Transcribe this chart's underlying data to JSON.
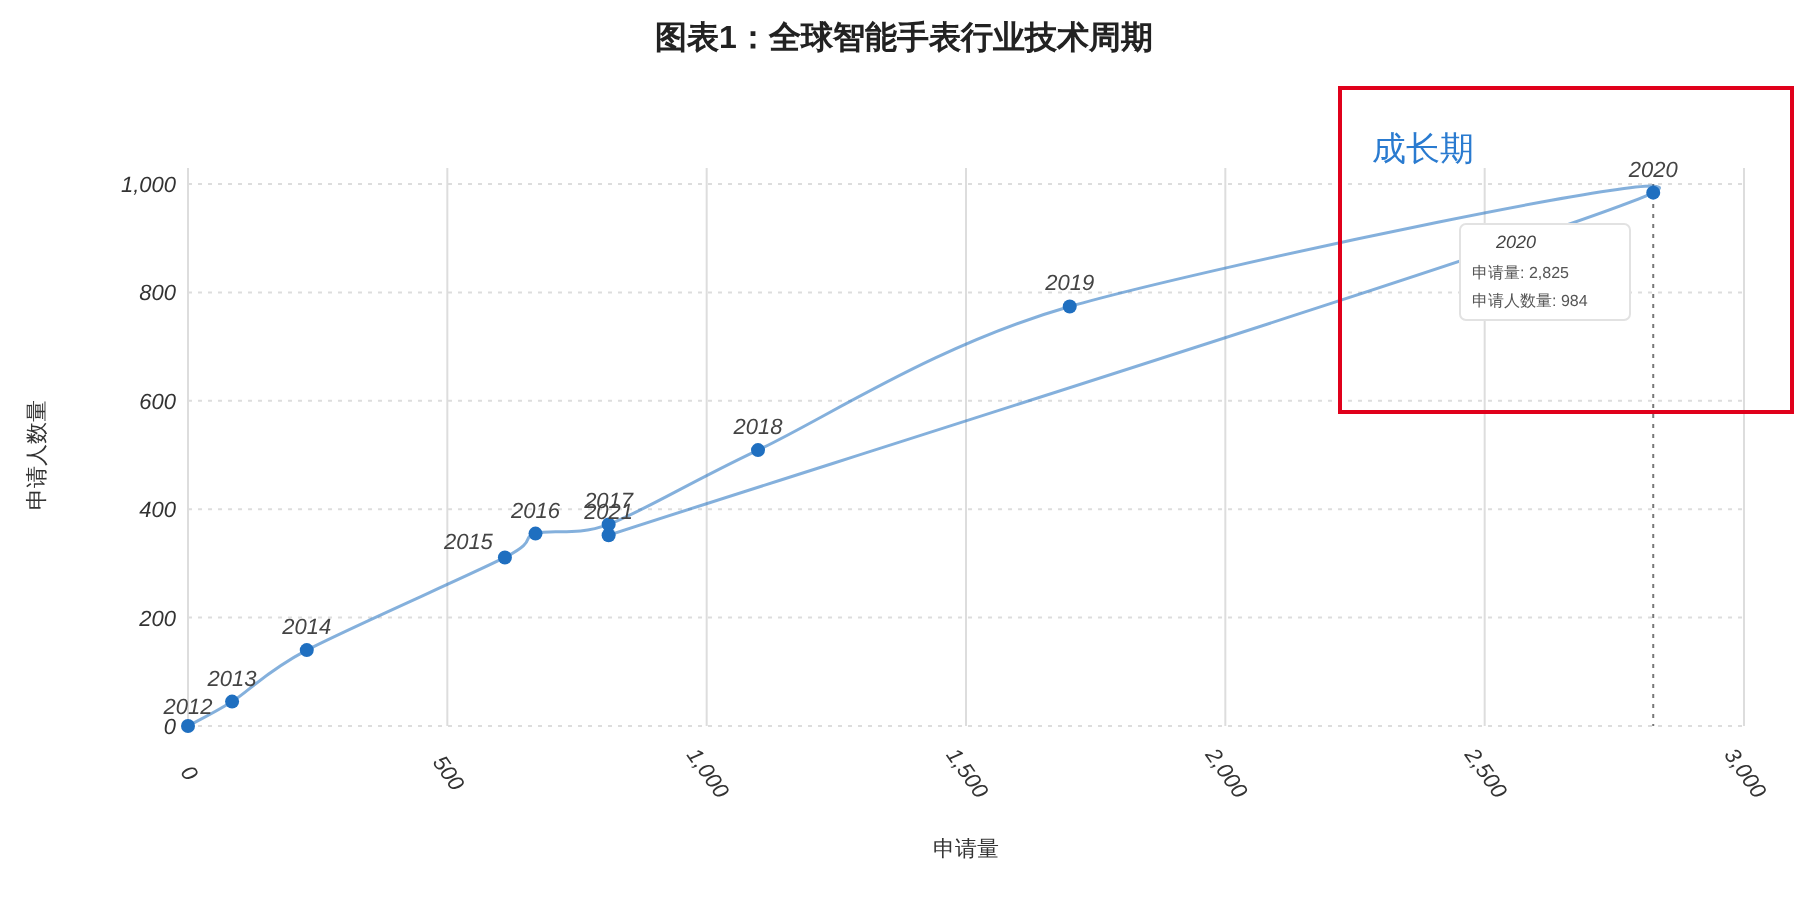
{
  "chart_data": {
    "type": "line",
    "title": "图表1：全球智能手表行业技术周期",
    "xlabel": "申请量",
    "ylabel": "申请人数量",
    "xlim": [
      0,
      3000
    ],
    "xticks": [
      {
        "value": 0,
        "label": "0"
      },
      {
        "value": 500,
        "label": "500"
      },
      {
        "value": 1000,
        "label": "1,000"
      },
      {
        "value": 1500,
        "label": "1,500"
      },
      {
        "value": 2000,
        "label": "2,000"
      },
      {
        "value": 2500,
        "label": "2,500"
      },
      {
        "value": 3000,
        "label": "3,000"
      }
    ],
    "ylim": [
      0,
      1000
    ],
    "yticks": [
      {
        "value": 0,
        "label": "0"
      },
      {
        "value": 200,
        "label": "200"
      },
      {
        "value": 400,
        "label": "400"
      },
      {
        "value": 600,
        "label": "600"
      },
      {
        "value": 800,
        "label": "800"
      },
      {
        "value": 1000,
        "label": "1,000"
      }
    ],
    "grid": true,
    "marker": "circle",
    "line_style": "solid",
    "series": [
      {
        "color": "#1f6fc0",
        "x": [
          0,
          85,
          229,
          611,
          670,
          811,
          1099,
          1700,
          2825,
          811
        ],
        "values": [
          0,
          45,
          140,
          311,
          355,
          372,
          509,
          774,
          984,
          352
        ]
      }
    ],
    "ref_lines": [
      {
        "axis": "x",
        "value": 2825,
        "color": "#777777",
        "line_style": "dotted"
      }
    ],
    "annotations": [
      {
        "text": "2012",
        "x": 0,
        "y": 0
      },
      {
        "text": "2013",
        "x": 85,
        "y": 45
      },
      {
        "text": "2014",
        "x": 229,
        "y": 140
      },
      {
        "text": "2015",
        "x": 611,
        "y": 311
      },
      {
        "text": "2016",
        "x": 670,
        "y": 355
      },
      {
        "text": "2017",
        "x": 811,
        "y": 372
      },
      {
        "text": "2018",
        "x": 1099,
        "y": 509
      },
      {
        "text": "2019",
        "x": 1700,
        "y": 774
      },
      {
        "text": "2020",
        "x": 2825,
        "y": 984
      },
      {
        "text": "2021",
        "x": 811,
        "y": 352
      },
      "成长期",
      "2020",
      "申请量: 2,825",
      "申请人数量: 984"
    ]
  }
}
